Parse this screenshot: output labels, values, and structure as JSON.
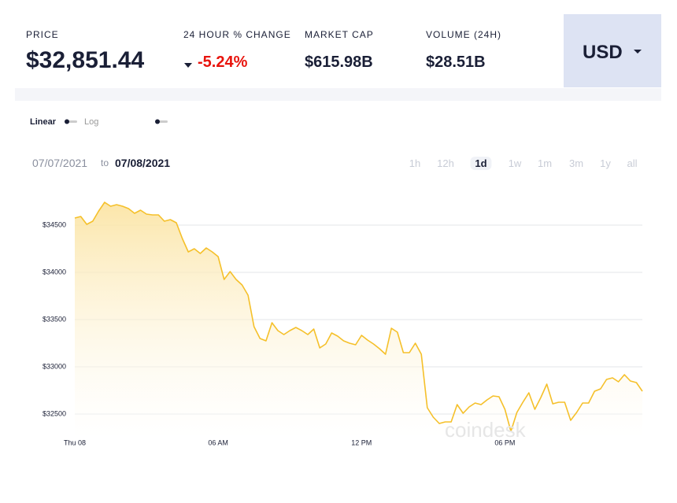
{
  "header": {
    "stats": [
      {
        "label": "PRICE",
        "value": "$32,851.44"
      },
      {
        "label": "24 HOUR % CHANGE",
        "value": "-5.24%"
      },
      {
        "label": "MARKET CAP",
        "value": "$615.98B"
      },
      {
        "label": "VOLUME (24H)",
        "value": "$28.51B"
      }
    ],
    "currency": "USD"
  },
  "controls": {
    "scale_options": [
      "Linear",
      "Log"
    ],
    "date_from": "07/07/2021",
    "date_sep": "to",
    "date_to": "07/08/2021",
    "ranges": [
      "1h",
      "12h",
      "1d",
      "1w",
      "1m",
      "3m",
      "1y",
      "all"
    ],
    "selected_range": "1d"
  },
  "watermark": "coindesk",
  "chart_data": {
    "type": "area",
    "color": "#f5c02a",
    "x": [
      0,
      0.25,
      0.5,
      0.75,
      1,
      1.25,
      1.5,
      1.75,
      2,
      2.25,
      2.5,
      2.75,
      3,
      3.25,
      3.5,
      3.75,
      4,
      4.25,
      4.5,
      4.75,
      5,
      5.25,
      5.5,
      5.75,
      6,
      6.25,
      6.5,
      6.75,
      7,
      7.25,
      7.5,
      7.75,
      8,
      8.25,
      8.5,
      8.75,
      9,
      9.25,
      9.5,
      9.75,
      10,
      10.25,
      10.5,
      10.75,
      11,
      11.25,
      11.5,
      11.75,
      12,
      12.25,
      12.5,
      12.75,
      13,
      13.25,
      13.5,
      13.75,
      14,
      14.25,
      14.5,
      14.75,
      15,
      15.25,
      15.5,
      15.75,
      16,
      16.25,
      16.5,
      16.75,
      17,
      17.25,
      17.5,
      17.75,
      18,
      18.25,
      18.5,
      18.75,
      19,
      19.25,
      19.5,
      19.75,
      20,
      20.25,
      20.5,
      20.75,
      21,
      21.25,
      21.5,
      21.75,
      22,
      22.25,
      22.5,
      22.75,
      23,
      23.25,
      23.5,
      23.75
    ],
    "values": [
      34575,
      34592,
      34508,
      34542,
      34650,
      34742,
      34700,
      34717,
      34700,
      34675,
      34625,
      34658,
      34617,
      34608,
      34608,
      34542,
      34558,
      34525,
      34358,
      34217,
      34250,
      34200,
      34258,
      34217,
      34167,
      33925,
      34008,
      33925,
      33867,
      33758,
      33425,
      33300,
      33275,
      33467,
      33383,
      33342,
      33383,
      33417,
      33383,
      33342,
      33400,
      33200,
      33242,
      33358,
      33325,
      33275,
      33250,
      33233,
      33333,
      33283,
      33242,
      33192,
      33133,
      33408,
      33367,
      33150,
      33150,
      33250,
      33133,
      32567,
      32467,
      32400,
      32417,
      32417,
      32600,
      32508,
      32575,
      32617,
      32600,
      32650,
      32692,
      32683,
      32550,
      32317,
      32517,
      32625,
      32725,
      32550,
      32675,
      32817,
      32608,
      32625,
      32625,
      32433,
      32517,
      32617,
      32617,
      32742,
      32767,
      32867,
      32883,
      32842,
      32917,
      32850,
      32833,
      32742
    ],
    "xlim": [
      0,
      23.75
    ],
    "xticks": [
      {
        "value": 0,
        "label": "Thu 08"
      },
      {
        "value": 6,
        "label": "06 AM"
      },
      {
        "value": 12,
        "label": "12 PM"
      },
      {
        "value": 18,
        "label": "06 PM"
      }
    ],
    "ylim": [
      32250,
      34880
    ],
    "yticks": [
      {
        "value": 32500,
        "label": "$32500"
      },
      {
        "value": 33000,
        "label": "$33000"
      },
      {
        "value": 33500,
        "label": "$33500"
      },
      {
        "value": 34000,
        "label": "$34000"
      },
      {
        "value": 34500,
        "label": "$34500"
      }
    ],
    "grid": true
  }
}
